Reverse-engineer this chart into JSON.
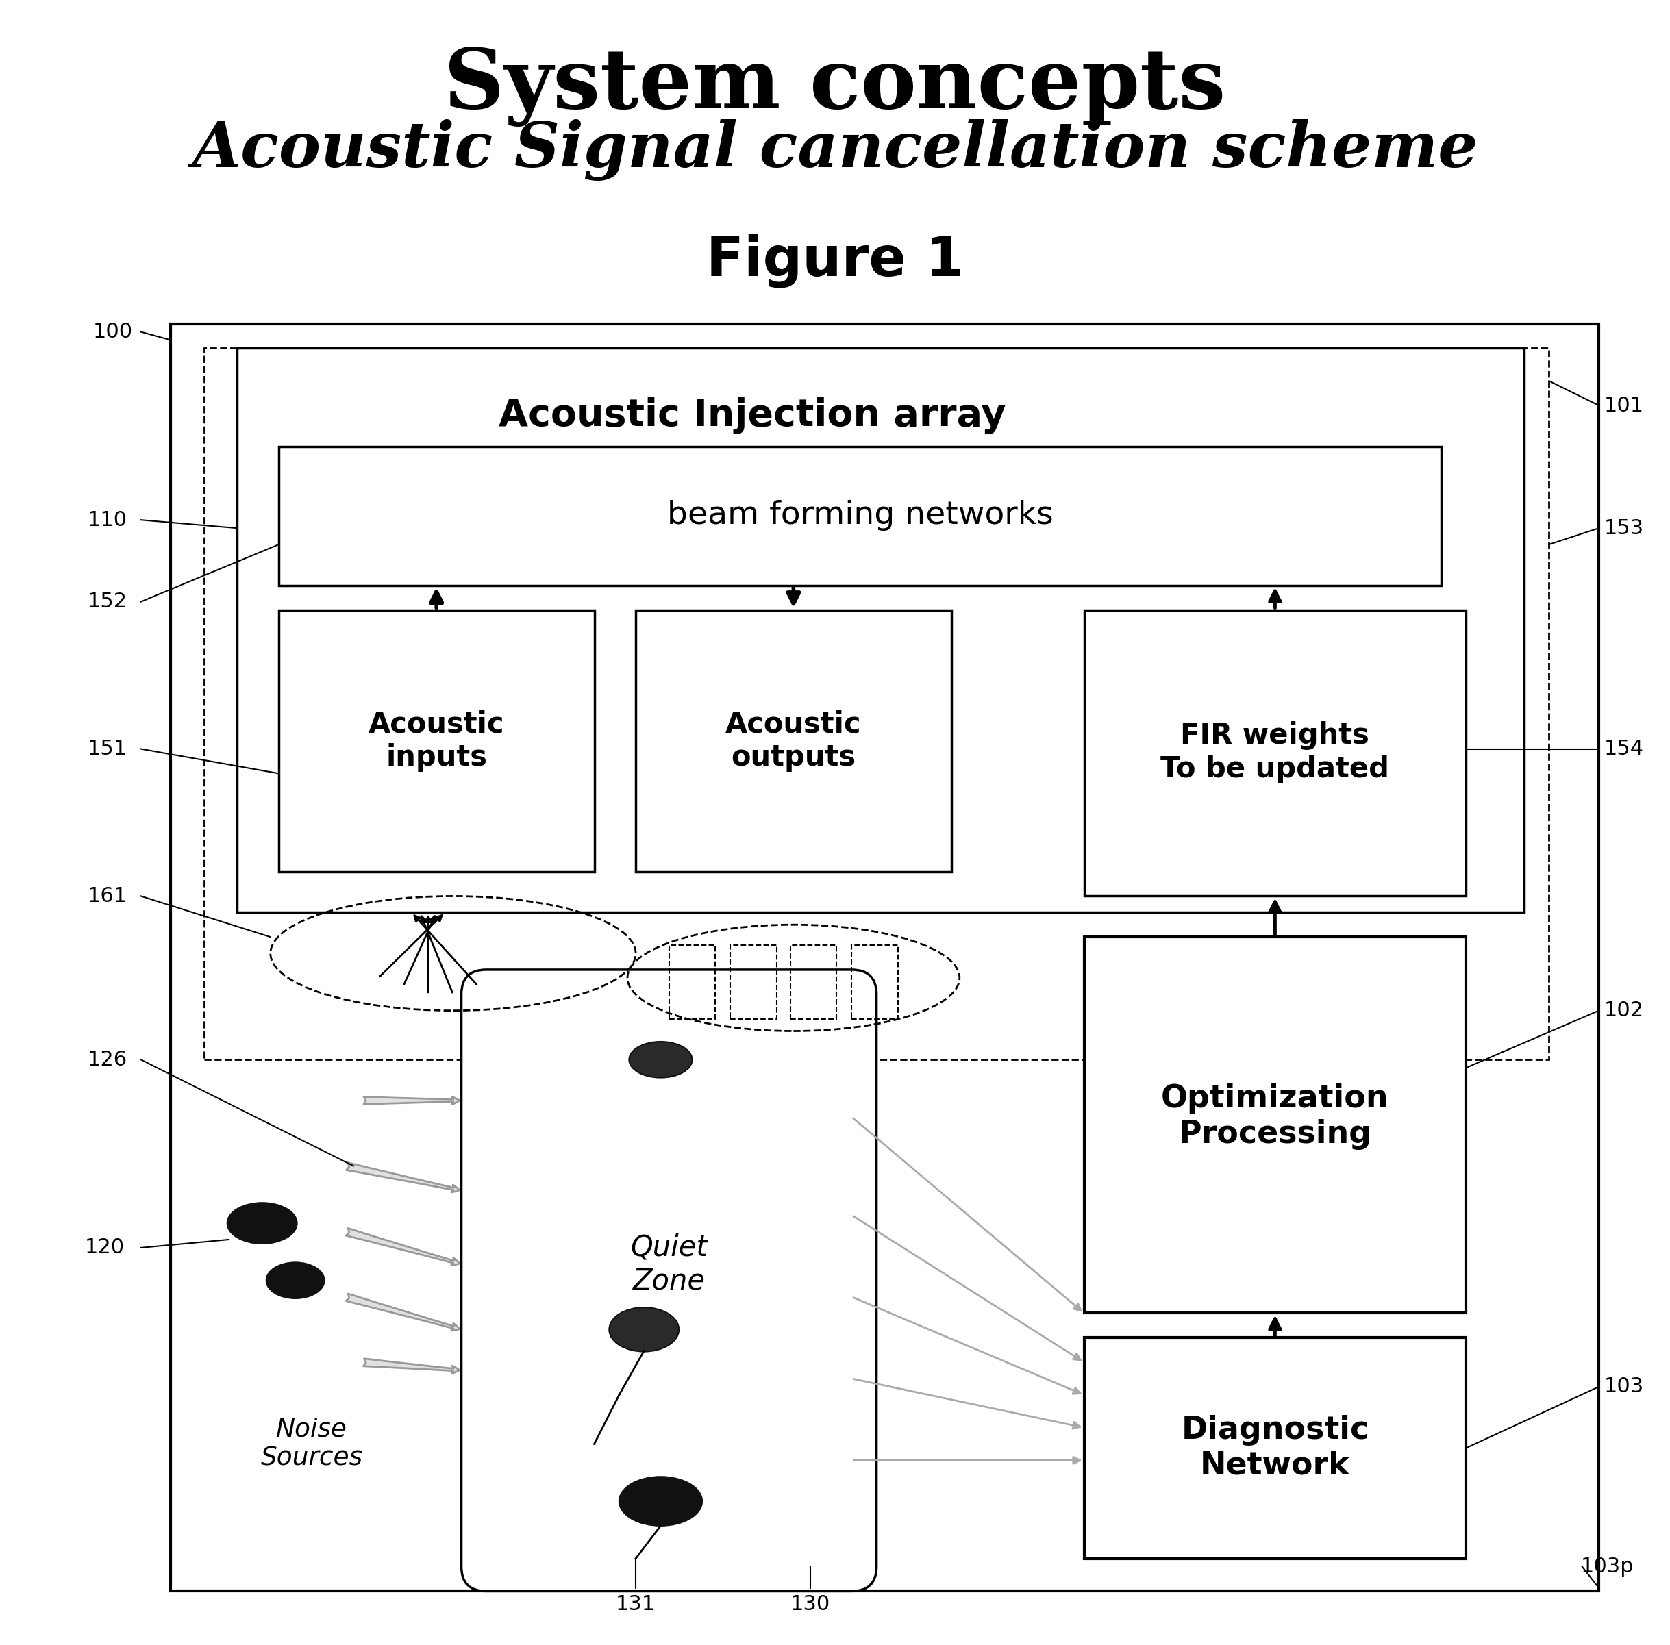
{
  "title1": "System concepts",
  "title2": "Acoustic Signal cancellation scheme",
  "figure_label": "Figure 1",
  "bg_color": "#ffffff",
  "labels": {
    "acoustic_injection_array": "Acoustic Injection array",
    "beam_forming": "beam forming networks",
    "acoustic_inputs": "Acoustic\ninputs",
    "acoustic_outputs": "Acoustic\noutputs",
    "fir_weights": "FIR weights\nTo be updated",
    "optimization": "Optimization\nProcessing",
    "diagnostic": "Diagnostic\nNetwork",
    "quiet_zone": "Quiet\nZone",
    "noise_sources": "Noise\nSources"
  }
}
